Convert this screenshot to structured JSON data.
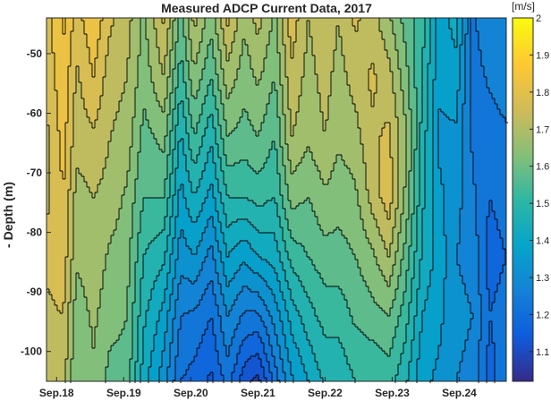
{
  "chart_data": {
    "type": "heatmap",
    "subtype": "filled-contour",
    "title": "Measured ADCP Current Data, 2017",
    "xlabel": "",
    "ylabel": "- Depth (m)",
    "x_tick_labels": [
      "Sep.18",
      "Sep.19",
      "Sep.20",
      "Sep.21",
      "Sep.22",
      "Sep.23",
      "Sep.24"
    ],
    "x_tick_days": [
      18,
      19,
      20,
      21,
      22,
      23,
      24
    ],
    "xlim_days": [
      17.85,
      24.7
    ],
    "y_ticks": [
      -50,
      -60,
      -70,
      -80,
      -90,
      -100
    ],
    "ylim": [
      -105,
      -44
    ],
    "colorbar": {
      "label": "[m/s]",
      "ticks": [
        1.1,
        1.2,
        1.3,
        1.4,
        1.5,
        1.6,
        1.7,
        1.8,
        1.9,
        2
      ],
      "range": [
        1.02,
        2.0
      ],
      "colormap": "parula"
    },
    "colors": {
      "parula": [
        "#352a87",
        "#0f5cdd",
        "#1481d6",
        "#06a4ca",
        "#2eb7a4",
        "#87bf77",
        "#d1bb59",
        "#fec832",
        "#f9fb0e"
      ],
      "contour_line": "#000000"
    },
    "columns": [
      {
        "day": 17.85,
        "speed": [
          1.78,
          1.76,
          1.74,
          1.74,
          1.76,
          1.74,
          1.72
        ]
      },
      {
        "day": 18.1,
        "speed": [
          1.86,
          1.84,
          1.82,
          1.8,
          1.78,
          1.75,
          1.72
        ]
      },
      {
        "day": 18.3,
        "speed": [
          1.78,
          1.74,
          1.72,
          1.68,
          1.66,
          1.62,
          1.6
        ]
      },
      {
        "day": 18.55,
        "speed": [
          1.84,
          1.8,
          1.74,
          1.7,
          1.68,
          1.66,
          1.64
        ]
      },
      {
        "day": 18.8,
        "speed": [
          1.76,
          1.72,
          1.7,
          1.68,
          1.64,
          1.62,
          1.58
        ]
      },
      {
        "day": 19.05,
        "speed": [
          1.72,
          1.7,
          1.68,
          1.64,
          1.62,
          1.6,
          1.58
        ]
      },
      {
        "day": 19.3,
        "speed": [
          1.64,
          1.62,
          1.58,
          1.55,
          1.5,
          1.46,
          1.42
        ]
      },
      {
        "day": 19.6,
        "speed": [
          1.76,
          1.7,
          1.62,
          1.55,
          1.46,
          1.38,
          1.32
        ]
      },
      {
        "day": 19.85,
        "speed": [
          1.58,
          1.52,
          1.44,
          1.38,
          1.32,
          1.25,
          1.2
        ]
      },
      {
        "day": 20.05,
        "speed": [
          1.72,
          1.64,
          1.55,
          1.45,
          1.35,
          1.24,
          1.18
        ]
      },
      {
        "day": 20.3,
        "speed": [
          1.62,
          1.55,
          1.46,
          1.38,
          1.28,
          1.2,
          1.14
        ]
      },
      {
        "day": 20.55,
        "speed": [
          1.76,
          1.68,
          1.6,
          1.5,
          1.4,
          1.3,
          1.22
        ]
      },
      {
        "day": 20.8,
        "speed": [
          1.66,
          1.62,
          1.58,
          1.5,
          1.36,
          1.24,
          1.12
        ]
      },
      {
        "day": 21.0,
        "speed": [
          1.72,
          1.66,
          1.6,
          1.52,
          1.4,
          1.24,
          1.08
        ]
      },
      {
        "day": 21.25,
        "speed": [
          1.64,
          1.6,
          1.55,
          1.5,
          1.42,
          1.32,
          1.22
        ]
      },
      {
        "day": 21.5,
        "speed": [
          1.78,
          1.74,
          1.7,
          1.62,
          1.52,
          1.42,
          1.34
        ]
      },
      {
        "day": 21.75,
        "speed": [
          1.7,
          1.68,
          1.66,
          1.6,
          1.55,
          1.48,
          1.4
        ]
      },
      {
        "day": 22.0,
        "speed": [
          1.74,
          1.72,
          1.7,
          1.64,
          1.58,
          1.52,
          1.46
        ]
      },
      {
        "day": 22.2,
        "speed": [
          1.7,
          1.68,
          1.66,
          1.62,
          1.58,
          1.52,
          1.46
        ]
      },
      {
        "day": 22.45,
        "speed": [
          1.76,
          1.72,
          1.68,
          1.64,
          1.6,
          1.56,
          1.5
        ]
      },
      {
        "day": 22.7,
        "speed": [
          1.72,
          1.76,
          1.74,
          1.72,
          1.64,
          1.58,
          1.5
        ]
      },
      {
        "day": 22.95,
        "speed": [
          1.66,
          1.72,
          1.76,
          1.78,
          1.7,
          1.6,
          1.52
        ]
      },
      {
        "day": 23.2,
        "speed": [
          1.58,
          1.62,
          1.66,
          1.64,
          1.58,
          1.52,
          1.46
        ]
      },
      {
        "day": 23.45,
        "speed": [
          1.52,
          1.5,
          1.48,
          1.46,
          1.44,
          1.4,
          1.36
        ]
      },
      {
        "day": 23.7,
        "speed": [
          1.38,
          1.36,
          1.34,
          1.36,
          1.38,
          1.36,
          1.34
        ]
      },
      {
        "day": 23.95,
        "speed": [
          1.42,
          1.38,
          1.34,
          1.32,
          1.3,
          1.32,
          1.3
        ]
      },
      {
        "day": 24.2,
        "speed": [
          1.24,
          1.22,
          1.24,
          1.26,
          1.28,
          1.3,
          1.28
        ]
      },
      {
        "day": 24.45,
        "speed": [
          1.3,
          1.26,
          1.22,
          1.2,
          1.18,
          1.2,
          1.18
        ]
      },
      {
        "day": 24.7,
        "speed": [
          1.26,
          1.28,
          1.24,
          1.22,
          1.2,
          1.22,
          1.24
        ]
      }
    ],
    "row_depths": [
      -44,
      -54,
      -64,
      -74,
      -84,
      -94,
      -105
    ]
  }
}
